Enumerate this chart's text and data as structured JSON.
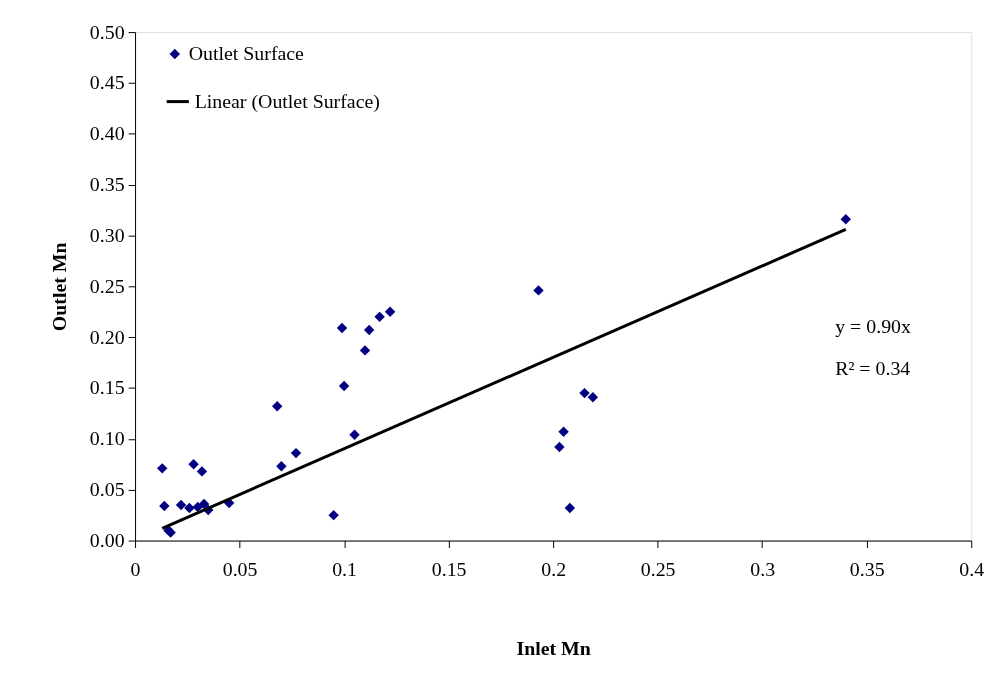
{
  "chart_data": {
    "type": "scatter",
    "xlabel": "Inlet Mn",
    "ylabel": "Outlet Mn",
    "xlim": [
      0,
      0.4
    ],
    "xticks": [
      0,
      0.05,
      0.1,
      0.15,
      0.2,
      0.25,
      0.3,
      0.35,
      0.4
    ],
    "ylim": [
      0,
      0.5
    ],
    "yticks": [
      {
        "value": 0,
        "label": "0.00"
      },
      {
        "value": 0.05,
        "label": "0.05"
      },
      {
        "value": 0.1,
        "label": "0.10"
      },
      {
        "value": 0.15,
        "label": "0.15"
      },
      {
        "value": 0.2,
        "label": "0.20"
      },
      {
        "value": 0.25,
        "label": "0.25"
      },
      {
        "value": 0.3,
        "label": "0.30"
      },
      {
        "value": 0.35,
        "label": "0.35"
      },
      {
        "value": 0.4,
        "label": "0.40"
      },
      {
        "value": 0.45,
        "label": "0.45"
      },
      {
        "value": 0.5,
        "label": "0.50"
      }
    ],
    "grid": false,
    "legend": "top left",
    "annotations": [
      "y = 0.90x",
      "R² = 0.34"
    ],
    "series": [
      {
        "name": "Outlet Surface",
        "marker": "diamond",
        "color": "#000080",
        "x": [
          0.013,
          0.014,
          0.016,
          0.017,
          0.022,
          0.026,
          0.028,
          0.03,
          0.032,
          0.033,
          0.035,
          0.045,
          0.068,
          0.07,
          0.077,
          0.095,
          0.099,
          0.1,
          0.105,
          0.11,
          0.112,
          0.117,
          0.122,
          0.193,
          0.203,
          0.205,
          0.208,
          0.215,
          0.219,
          0.34
        ],
        "values": [
          0.071,
          0.034,
          0.01,
          0.008,
          0.035,
          0.032,
          0.075,
          0.033,
          0.068,
          0.036,
          0.03,
          0.037,
          0.132,
          0.073,
          0.086,
          0.025,
          0.209,
          0.152,
          0.104,
          0.187,
          0.207,
          0.22,
          0.225,
          0.246,
          0.092,
          0.107,
          0.032,
          0.145,
          0.141,
          0.316
        ]
      },
      {
        "name": "Linear (Outlet Surface)",
        "type": "line",
        "color": "#000000",
        "line_style": "solid",
        "x": [
          0.013,
          0.34
        ],
        "values": [
          0.012,
          0.306
        ]
      }
    ]
  }
}
